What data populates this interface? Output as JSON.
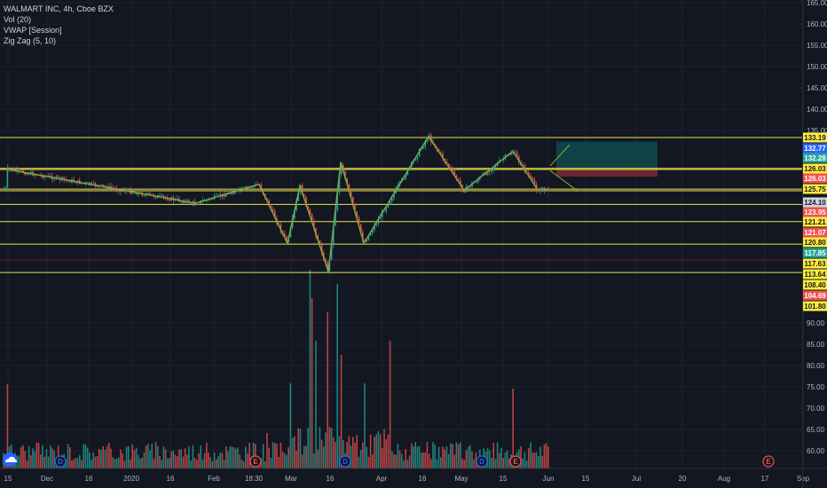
{
  "legend": {
    "title": "WALMART INC, 4h, Cboe BZX",
    "items": [
      "Vol (20)",
      "VWAP [Session]",
      "Zig Zag (5, 10)"
    ]
  },
  "colors": {
    "background": "#131722",
    "grid": "#1e222d",
    "up": "#26a69a",
    "down": "#ef5350",
    "hline": "#e9e34a",
    "zigzag": "#7cb342",
    "target_zone": "#0f4a4a",
    "stop_zone": "#7a2a33"
  },
  "y_axis": {
    "ticks": [
      "165.00",
      "160.00",
      "155.00",
      "150.00",
      "145.00",
      "140.00",
      "135.00",
      "90.00",
      "85.00",
      "80.00",
      "75.00",
      "70.00",
      "65.00",
      "60.00"
    ]
  },
  "x_axis": {
    "labels": [
      "15",
      "Dec",
      "16",
      "2020",
      "16",
      "Feb",
      "18:30",
      "Mar",
      "16",
      "Apr",
      "16",
      "May",
      "15",
      "Jun",
      "15",
      "Jul",
      "20",
      "Aug",
      "17",
      "Sep"
    ]
  },
  "price_tags": [
    {
      "label": "133.19",
      "type": "yellow"
    },
    {
      "label": "132.77",
      "type": "blue"
    },
    {
      "label": "132.28",
      "type": "teal"
    },
    {
      "label": "126.03",
      "type": "yellow"
    },
    {
      "label": "126.03",
      "type": "red"
    },
    {
      "label": "125.75",
      "type": "yellow"
    },
    {
      "label": "124.10",
      "type": "gray"
    },
    {
      "label": "123.95",
      "type": "red"
    },
    {
      "label": "121.21",
      "type": "yellow"
    },
    {
      "label": "121.07",
      "type": "red"
    },
    {
      "label": "120.80",
      "type": "yellow"
    },
    {
      "label": "117.85",
      "type": "teal"
    },
    {
      "label": "117.63",
      "type": "yellow"
    },
    {
      "label": "113.64",
      "type": "yellow"
    },
    {
      "label": "108.40",
      "type": "yellow"
    },
    {
      "label": "104.69",
      "type": "red"
    },
    {
      "label": "101.80",
      "type": "yellow"
    }
  ],
  "events": [
    "D",
    "E",
    "D",
    "D",
    "E",
    "E"
  ],
  "chart_data": {
    "type": "candlestick",
    "title": "WALMART INC, 4h, Cboe BZX",
    "horizontal_levels": [
      133.19,
      126.03,
      125.75,
      121.21,
      120.8,
      117.63,
      113.64,
      108.4,
      101.8
    ],
    "zigzag_pivots": [
      {
        "date": "Nov 15",
        "price": 125.8
      },
      {
        "date": "Jan 22",
        "price": 117.9
      },
      {
        "date": "Feb 13",
        "price": 122.3
      },
      {
        "date": "Feb 28",
        "price": 108.5
      },
      {
        "date": "Mar 04",
        "price": 122.0
      },
      {
        "date": "Mar 12",
        "price": 102.0
      },
      {
        "date": "Mar 17",
        "price": 127.5
      },
      {
        "date": "Mar 23",
        "price": 108.6
      },
      {
        "date": "Apr 13",
        "price": 133.5
      },
      {
        "date": "Apr 30",
        "price": 120.9
      },
      {
        "date": "May 19",
        "price": 130.0
      },
      {
        "date": "May 28",
        "price": 121.3
      }
    ],
    "position": {
      "entry": 126.03,
      "target": 132.28,
      "stop": 124.1
    }
  }
}
